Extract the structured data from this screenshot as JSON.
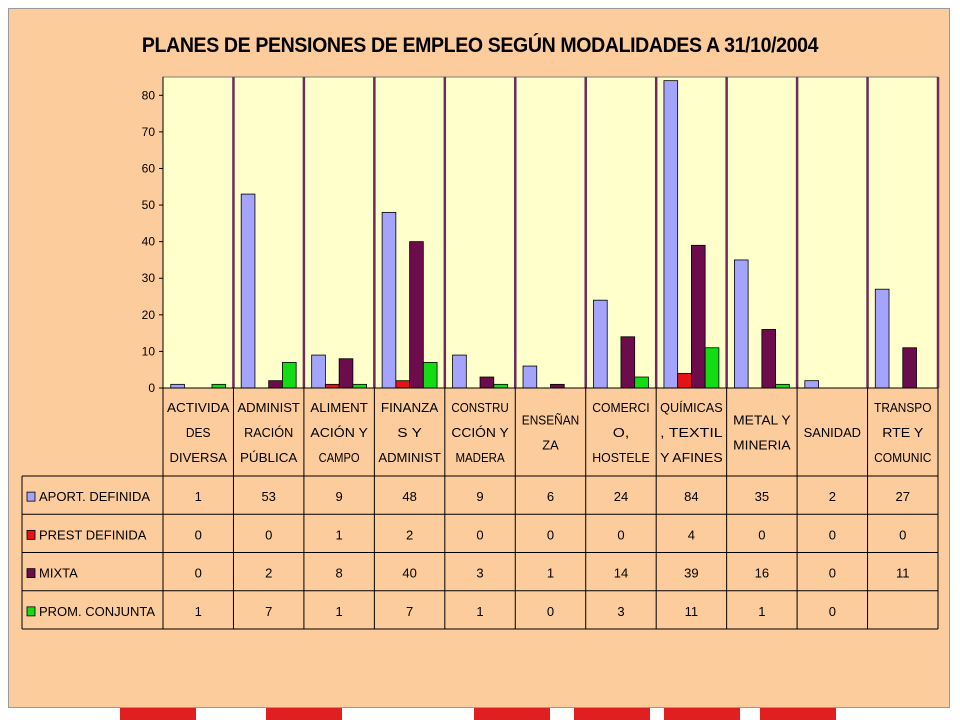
{
  "chart_data": {
    "type": "bar",
    "title": "PLANES DE PENSIONES DE EMPLEO SEGÚN MODALIDADES A 31/10/2004",
    "xlabel": "",
    "ylabel": "",
    "ylim": [
      0,
      85
    ],
    "yticks": [
      0,
      10,
      20,
      30,
      40,
      50,
      60,
      70,
      80
    ],
    "grid": false,
    "legend": "data-table",
    "categories": [
      [
        "ACTIVIDA",
        "DES",
        "DIVERSA"
      ],
      [
        "ADMINIST",
        "RACIÓN",
        "PÚBLICA"
      ],
      [
        "ALIMENT",
        "ACIÓN Y",
        "CAMPO"
      ],
      [
        "FINANZA",
        "S Y",
        "ADMINIST"
      ],
      [
        "CONSTRU",
        "CCIÓN Y",
        "MADERA"
      ],
      [
        "ENSEÑAN",
        "ZA"
      ],
      [
        "COMERCI",
        "O,",
        "HOSTELE"
      ],
      [
        "QUÍMICAS",
        ", TEXTIL",
        "Y AFINES"
      ],
      [
        "METAL Y",
        "MINERIA"
      ],
      [
        "SANIDAD"
      ],
      [
        "TRANSPO",
        "RTE Y",
        "COMUNIC"
      ]
    ],
    "series": [
      {
        "name": "APORT. DEFINIDA",
        "color": "#a4a4fc",
        "values": [
          1,
          53,
          9,
          48,
          9,
          6,
          24,
          84,
          35,
          2,
          27
        ]
      },
      {
        "name": "PREST DEFINIDA",
        "color": "#e41414",
        "values": [
          0,
          0,
          1,
          2,
          0,
          0,
          0,
          4,
          0,
          0,
          0
        ]
      },
      {
        "name": "MIXTA",
        "color": "#6c0c4c",
        "values": [
          0,
          2,
          8,
          40,
          3,
          1,
          14,
          39,
          16,
          0,
          11
        ]
      },
      {
        "name": "PROM. CONJUNTA",
        "color": "#14dc14",
        "values": [
          1,
          7,
          1,
          7,
          1,
          0,
          3,
          11,
          1,
          0,
          null
        ]
      }
    ]
  }
}
